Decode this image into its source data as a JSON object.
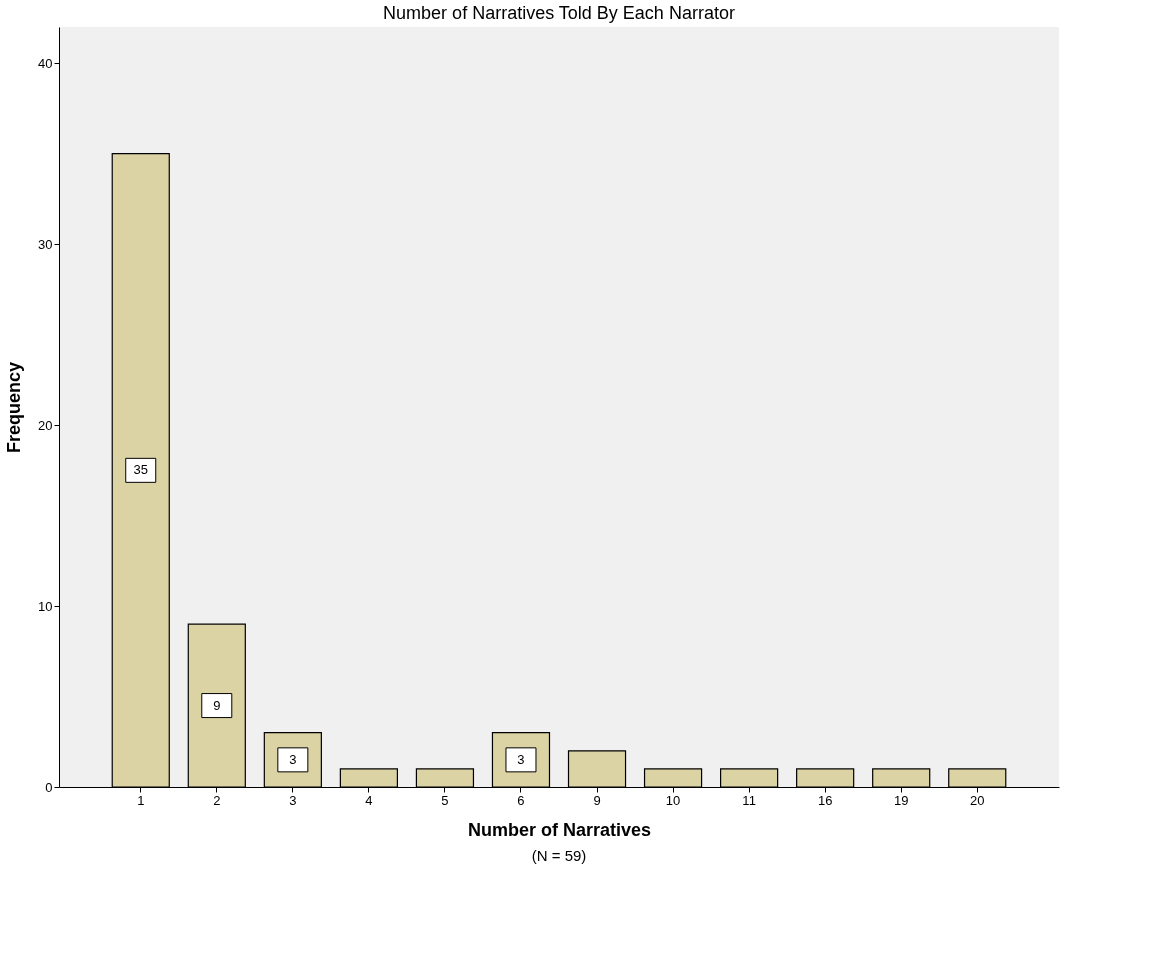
{
  "chart_data": {
    "type": "bar",
    "title": "Number of Narratives Told By Each Narrator",
    "xlabel": "Number of Narratives",
    "ylabel": "Frequency",
    "categories": [
      "1",
      "2",
      "3",
      "4",
      "5",
      "6",
      "9",
      "10",
      "11",
      "16",
      "19",
      "20"
    ],
    "values": [
      35,
      9,
      3,
      1,
      1,
      3,
      2,
      1,
      1,
      1,
      1,
      1
    ],
    "value_labels": [
      "35",
      "9",
      "3",
      null,
      null,
      "3",
      null,
      null,
      null,
      null,
      null,
      null
    ],
    "color": "#dcd3a4",
    "ylim": [
      0,
      42
    ],
    "yticks": [
      0,
      10,
      20,
      30,
      40
    ],
    "grid": false,
    "annotations": [
      "(N = 59)"
    ]
  }
}
